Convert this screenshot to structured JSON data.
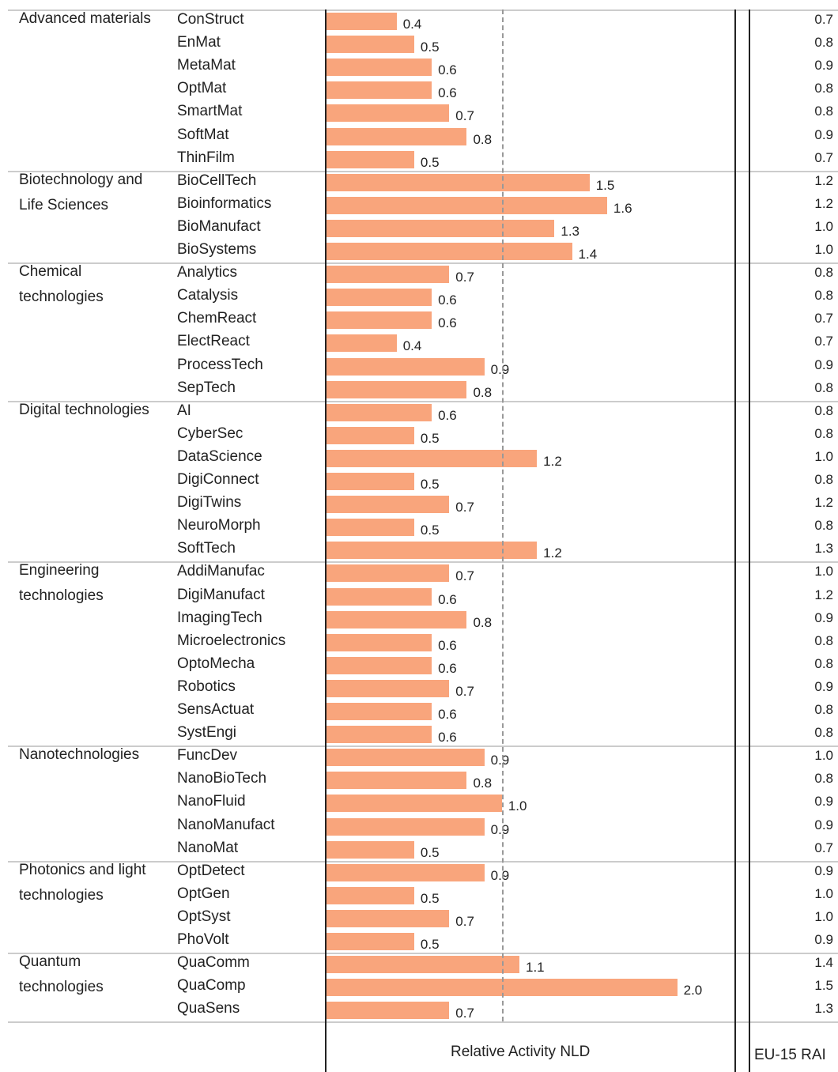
{
  "chart_data": {
    "type": "bar",
    "xlabel": "Relative Activity NLD",
    "x2label": "EU-15 RAI",
    "color": "#f9a57c",
    "reference": 1,
    "xlim": [
      0,
      2.2
    ],
    "groups": [
      {
        "name": "Advanced materials",
        "categories": [
          "ConStruct",
          "EnMat",
          "MetaMat",
          "OptMat",
          "SmartMat",
          "SoftMat",
          "ThinFilm"
        ],
        "values": [
          0.4,
          0.5,
          0.6,
          0.6,
          0.7,
          0.8,
          0.5
        ],
        "value_labels": [
          "0.4",
          "0.5",
          "0.6",
          "0.6",
          "0.7",
          "0.8",
          "0.5"
        ],
        "eu": [
          "0.7",
          "0.8",
          "0.9",
          "0.8",
          "0.8",
          "0.9",
          "0.7"
        ]
      },
      {
        "name": "Biotechnology and Life Sciences",
        "categories": [
          "BioCellTech",
          "Bioinformatics",
          "BioManufact",
          "BioSystems"
        ],
        "values": [
          1.5,
          1.6,
          1.3,
          1.4
        ],
        "value_labels": [
          "1.5",
          "1.6",
          "1.3",
          "1.4"
        ],
        "eu": [
          "1.2",
          "1.2",
          "1.0",
          "1.0"
        ]
      },
      {
        "name": "Chemical technologies",
        "categories": [
          "Analytics",
          "Catalysis",
          "ChemReact",
          "ElectReact",
          "ProcessTech",
          "SepTech"
        ],
        "values": [
          0.7,
          0.6,
          0.6,
          0.4,
          0.9,
          0.8
        ],
        "value_labels": [
          "0.7",
          "0.6",
          "0.6",
          "0.4",
          "0.9",
          "0.8"
        ],
        "eu": [
          "0.8",
          "0.8",
          "0.7",
          "0.7",
          "0.9",
          "0.8"
        ]
      },
      {
        "name": "Digital technologies",
        "categories": [
          "AI",
          "CyberSec",
          "DataScience",
          "DigiConnect",
          "DigiTwins",
          "NeuroMorph",
          "SoftTech"
        ],
        "values": [
          0.6,
          0.5,
          1.2,
          0.5,
          0.7,
          0.5,
          1.2
        ],
        "value_labels": [
          "0.6",
          "0.5",
          "1.2",
          "0.5",
          "0.7",
          "0.5",
          "1.2"
        ],
        "eu": [
          "0.8",
          "0.8",
          "1.0",
          "0.8",
          "1.2",
          "0.8",
          "1.3"
        ]
      },
      {
        "name": "Engineering technologies",
        "categories": [
          "AddiManufac",
          "DigiManufact",
          "ImagingTech",
          "Microelectronics",
          "OptoMecha",
          "Robotics",
          "SensActuat",
          "SystEngi"
        ],
        "values": [
          0.7,
          0.6,
          0.8,
          0.6,
          0.6,
          0.7,
          0.6,
          0.6
        ],
        "value_labels": [
          "0.7",
          "0.6",
          "0.8",
          "0.6",
          "0.6",
          "0.7",
          "0.6",
          "0.6"
        ],
        "eu": [
          "1.0",
          "1.2",
          "0.9",
          "0.8",
          "0.8",
          "0.9",
          "0.8",
          "0.8"
        ]
      },
      {
        "name": "Nanotechnologies",
        "categories": [
          "FuncDev",
          "NanoBioTech",
          "NanoFluid",
          "NanoManufact",
          "NanoMat"
        ],
        "values": [
          0.9,
          0.8,
          1,
          0.9,
          0.5
        ],
        "value_labels": [
          "0.9",
          "0.8",
          "1.0",
          "0.9",
          "0.5"
        ],
        "eu": [
          "1.0",
          "0.8",
          "0.9",
          "0.9",
          "0.7"
        ]
      },
      {
        "name": "Photonics and light technologies",
        "categories": [
          "OptDetect",
          "OptGen",
          "OptSyst",
          "PhoVolt"
        ],
        "values": [
          0.9,
          0.5,
          0.7,
          0.5
        ],
        "value_labels": [
          "0.9",
          "0.5",
          "0.7",
          "0.5"
        ],
        "eu": [
          "0.9",
          "1.0",
          "1.0",
          "0.9"
        ]
      },
      {
        "name": "Quantum technologies",
        "categories": [
          "QuaComm",
          "QuaComp",
          "QuaSens"
        ],
        "values": [
          1.1,
          2,
          0.7
        ],
        "value_labels": [
          "1.1",
          "2.0",
          "0.7"
        ],
        "eu": [
          "1.4",
          "1.5",
          "1.3"
        ]
      }
    ]
  }
}
